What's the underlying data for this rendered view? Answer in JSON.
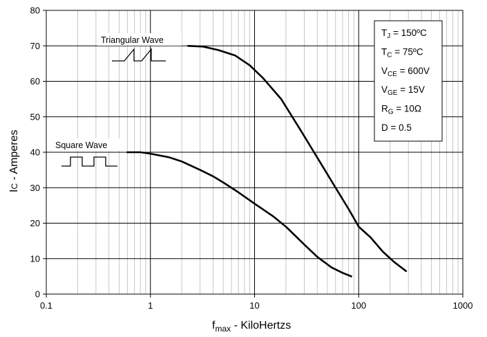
{
  "chart_data": {
    "type": "line",
    "x_scale": "log",
    "xlim": [
      0.1,
      1000
    ],
    "ylim": [
      0,
      80
    ],
    "grid": true,
    "xlabel": {
      "main": "f",
      "sub": "max",
      "rest": " - KiloHertzs"
    },
    "ylabel": {
      "main": "I",
      "sub": "C",
      "rest": " - Amperes"
    },
    "x_ticks": [
      "0.1",
      "1",
      "10",
      "100",
      "1000"
    ],
    "y_ticks": [
      "0",
      "10",
      "20",
      "30",
      "40",
      "50",
      "60",
      "70",
      "80"
    ],
    "series": [
      {
        "name": "Triangular Wave",
        "points": [
          [
            2.3,
            70
          ],
          [
            3.2,
            69.8
          ],
          [
            4.5,
            68.8
          ],
          [
            6.5,
            67.3
          ],
          [
            9,
            64.5
          ],
          [
            12,
            61
          ],
          [
            18,
            55
          ],
          [
            28,
            46
          ],
          [
            40,
            38.5
          ],
          [
            60,
            30
          ],
          [
            80,
            24
          ],
          [
            100,
            19
          ],
          [
            130,
            16
          ],
          [
            170,
            12
          ],
          [
            220,
            9
          ],
          [
            285,
            6.5
          ]
        ]
      },
      {
        "name": "Square Wave",
        "points": [
          [
            0.6,
            40
          ],
          [
            0.8,
            40
          ],
          [
            1,
            39.6
          ],
          [
            1.5,
            38.6
          ],
          [
            2,
            37.4
          ],
          [
            3,
            35
          ],
          [
            4,
            33.2
          ],
          [
            5,
            31.5
          ],
          [
            7,
            28.7
          ],
          [
            10,
            25.5
          ],
          [
            15,
            22
          ],
          [
            20,
            19
          ],
          [
            30,
            14
          ],
          [
            40,
            10.5
          ],
          [
            55,
            7.5
          ],
          [
            70,
            6
          ],
          [
            85,
            5
          ]
        ]
      }
    ],
    "annotations": {
      "triangular_label": "Triangular Wave",
      "square_label": "Square Wave"
    },
    "conditions": [
      {
        "main": "T",
        "sub": "J",
        "rest": " = 150ºC"
      },
      {
        "main": "T",
        "sub": "C",
        "rest": " = 75ºC"
      },
      {
        "main": "V",
        "sub": "CE",
        "rest": " = 600V"
      },
      {
        "main": "V",
        "sub": "GE",
        "rest": " = 15V"
      },
      {
        "main": "R",
        "sub": "G",
        "rest": " = 10Ω"
      },
      {
        "main": "D = 0.5",
        "sub": "",
        "rest": ""
      }
    ],
    "colors": {
      "line": "#000000",
      "grid": "#000000",
      "background": "#ffffff"
    }
  }
}
